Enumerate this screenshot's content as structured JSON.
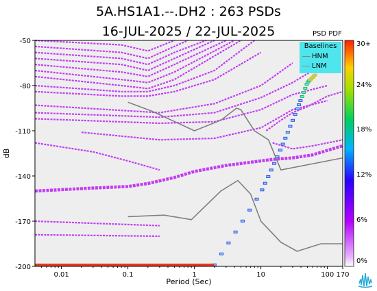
{
  "title": "5A.HS1A1.--.DH2 : 263 PSDs",
  "subtitle": "16-JUL-2025 / 22-JUL-2025",
  "pdf_label": "PSD PDF",
  "legend": {
    "title": "Baselines",
    "items": [
      "HNM",
      "LNM"
    ]
  },
  "colorbar": {
    "ticks": [
      "30+",
      "24%",
      "18%",
      "12%",
      "6%",
      "0%"
    ]
  },
  "colors": {
    "psd": "#c33cf4",
    "plot_bg": "#eeeeee",
    "baseline": "#7f7f7f",
    "legend_bg": "#4ee6ec"
  },
  "chart_data": {
    "type": "scatter",
    "xlabel": "Period (Sec)",
    "ylabel": "dB",
    "x_scale": "log",
    "xlim": [
      0.004,
      170
    ],
    "ylim": [
      -200,
      -50
    ],
    "x_ticks": [
      "0.01",
      "0.1",
      "1",
      "10",
      "100",
      "170"
    ],
    "x_tick_values": [
      0.01,
      0.1,
      1,
      10,
      100,
      170
    ],
    "y_ticks": [
      "-50",
      "-80",
      "-110",
      "-140",
      "-170",
      "-200"
    ],
    "y_tick_values": [
      -50,
      -80,
      -110,
      -140,
      -170,
      -200
    ],
    "baselines": {
      "HNM": [
        [
          0.1,
          -91
        ],
        [
          0.23,
          -97
        ],
        [
          0.8,
          -108
        ],
        [
          1.0,
          -110
        ],
        [
          2.5,
          -103
        ],
        [
          4.3,
          -95
        ],
        [
          5.0,
          -96
        ],
        [
          8.0,
          -110
        ],
        [
          13,
          -116
        ],
        [
          20,
          -136
        ],
        [
          100,
          -130
        ],
        [
          170,
          -128
        ]
      ],
      "LNM": [
        [
          0.1,
          -167
        ],
        [
          0.35,
          -166
        ],
        [
          0.9,
          -169
        ],
        [
          2.5,
          -150
        ],
        [
          4.5,
          -143
        ],
        [
          7.0,
          -152
        ],
        [
          10,
          -170
        ],
        [
          20,
          -184
        ],
        [
          35,
          -190
        ],
        [
          80,
          -185
        ],
        [
          170,
          -185
        ]
      ]
    },
    "dominant_mode": [
      [
        0.004,
        -150
      ],
      [
        0.03,
        -148
      ],
      [
        0.1,
        -147
      ],
      [
        0.2,
        -145
      ],
      [
        0.5,
        -141
      ],
      [
        1,
        -137
      ],
      [
        3,
        -133
      ],
      [
        10,
        -130
      ],
      [
        15,
        -129
      ],
      [
        30,
        -128
      ],
      [
        60,
        -126
      ],
      [
        100,
        -123
      ],
      [
        170,
        -120
      ]
    ],
    "bands": [
      [
        [
          0.004,
          -50
        ],
        [
          0.08,
          -53
        ],
        [
          0.2,
          -57
        ],
        [
          0.5,
          -50
        ]
      ],
      [
        [
          0.004,
          -54
        ],
        [
          0.08,
          -58
        ],
        [
          0.2,
          -62
        ],
        [
          0.5,
          -54
        ],
        [
          0.8,
          -50
        ]
      ],
      [
        [
          0.004,
          -58
        ],
        [
          0.08,
          -62
        ],
        [
          0.2,
          -66
        ],
        [
          0.5,
          -58
        ],
        [
          1.5,
          -50
        ]
      ],
      [
        [
          0.004,
          -62
        ],
        [
          0.08,
          -66
        ],
        [
          0.2,
          -70
        ],
        [
          0.5,
          -62
        ],
        [
          2.0,
          -50
        ]
      ],
      [
        [
          0.004,
          -66
        ],
        [
          0.08,
          -71
        ],
        [
          0.2,
          -74
        ],
        [
          0.5,
          -66
        ],
        [
          3.0,
          -50
        ]
      ],
      [
        [
          0.004,
          -70
        ],
        [
          0.08,
          -76
        ],
        [
          0.2,
          -78
        ],
        [
          0.5,
          -71
        ],
        [
          4.0,
          -50
        ]
      ],
      [
        [
          0.004,
          -74
        ],
        [
          0.08,
          -80
        ],
        [
          0.2,
          -82
        ],
        [
          0.5,
          -76
        ],
        [
          5.0,
          -50
        ]
      ],
      [
        [
          0.004,
          -80
        ],
        [
          0.08,
          -84
        ],
        [
          0.2,
          -84
        ],
        [
          0.5,
          -80
        ],
        [
          2.0,
          -70
        ],
        [
          8.0,
          -50
        ]
      ],
      [
        [
          0.004,
          -84
        ],
        [
          0.08,
          -87
        ],
        [
          0.2,
          -87
        ],
        [
          0.5,
          -84
        ],
        [
          2.0,
          -76
        ],
        [
          10,
          -58
        ]
      ],
      [
        [
          0.004,
          -93
        ],
        [
          0.3,
          -98
        ],
        [
          2.0,
          -92
        ],
        [
          10,
          -80
        ],
        [
          30,
          -65
        ]
      ],
      [
        [
          0.004,
          -98
        ],
        [
          0.3,
          -101
        ],
        [
          2.0,
          -98
        ],
        [
          10,
          -88
        ],
        [
          30,
          -78
        ],
        [
          60,
          -70
        ]
      ],
      [
        [
          0.004,
          -102
        ],
        [
          0.3,
          -105
        ],
        [
          2.0,
          -104
        ],
        [
          10,
          -96
        ],
        [
          30,
          -86
        ],
        [
          100,
          -80
        ]
      ],
      [
        [
          0.02,
          -111
        ],
        [
          0.3,
          -116
        ],
        [
          2.0,
          -115
        ],
        [
          10,
          -108
        ],
        [
          30,
          -96
        ],
        [
          100,
          -90
        ]
      ],
      [
        [
          0.004,
          -118
        ],
        [
          0.03,
          -124
        ],
        [
          0.1,
          -130
        ],
        [
          0.3,
          -136
        ]
      ],
      [
        [
          0.004,
          -170
        ],
        [
          0.3,
          -173
        ]
      ],
      [
        [
          0.004,
          -179
        ],
        [
          0.3,
          -180
        ]
      ],
      [
        [
          12,
          -110
        ],
        [
          20,
          -103
        ],
        [
          30,
          -98
        ],
        [
          50,
          -94
        ],
        [
          100,
          -87
        ],
        [
          170,
          -84
        ]
      ],
      [
        [
          15,
          -118
        ],
        [
          30,
          -122
        ],
        [
          60,
          -120
        ],
        [
          170,
          -116
        ]
      ]
    ],
    "pdf_tail": [
      [
        2.0,
        -199
      ],
      [
        10,
        -151
      ],
      [
        20,
        -122
      ],
      [
        35,
        -96
      ],
      [
        50,
        -78
      ],
      [
        65,
        -73
      ]
    ]
  }
}
